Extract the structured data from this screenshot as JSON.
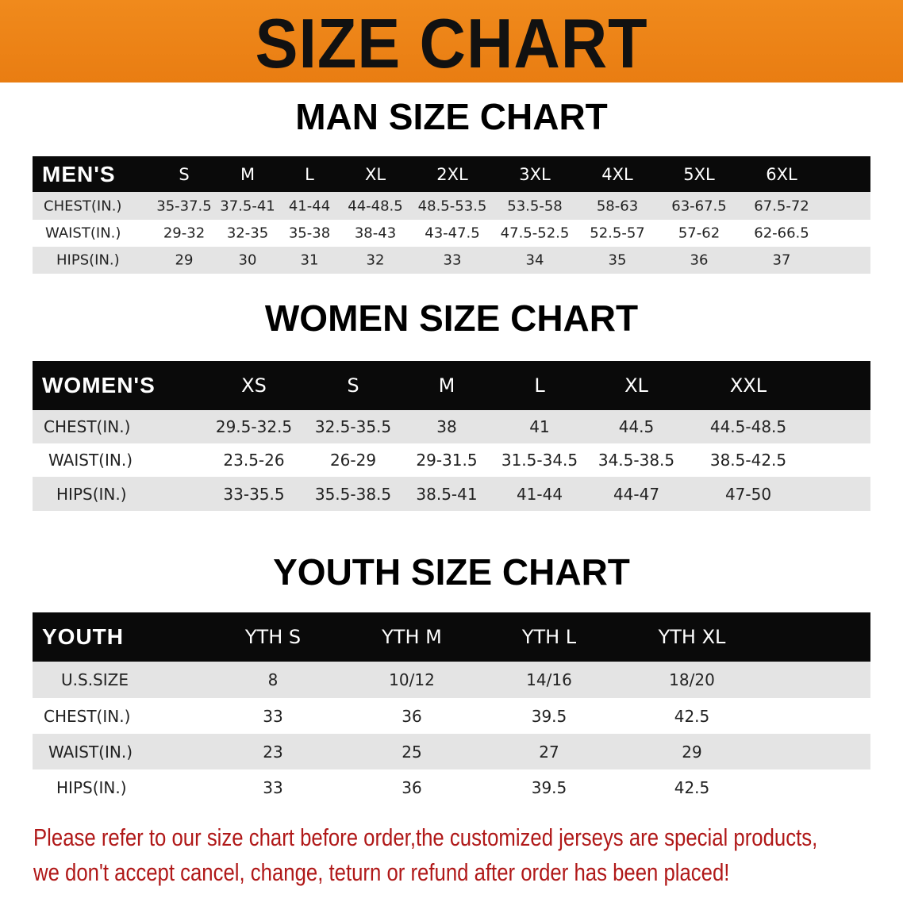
{
  "banner": {
    "title": "SIZE CHART",
    "color": "#ec8318"
  },
  "men": {
    "title": "MAN SIZE CHART",
    "header": [
      "MEN'S",
      "S",
      "M",
      "L",
      "XL",
      "2XL",
      "3XL",
      "4XL",
      "5XL",
      "6XL"
    ],
    "rows": [
      [
        "CHEST(IN.)",
        "35-37.5",
        "37.5-41",
        "41-44",
        "44-48.5",
        "48.5-53.5",
        "53.5-58",
        "58-63",
        "63-67.5",
        "67.5-72"
      ],
      [
        "WAIST(IN.)",
        "29-32",
        "32-35",
        "35-38",
        "38-43",
        "43-47.5",
        "47.5-52.5",
        "52.5-57",
        "57-62",
        "62-66.5"
      ],
      [
        "HIPS(IN.)",
        "29",
        "30",
        "31",
        "32",
        "33",
        "34",
        "35",
        "36",
        "37"
      ]
    ]
  },
  "women": {
    "title": "WOMEN SIZE CHART",
    "header": [
      "WOMEN'S",
      "XS",
      "S",
      "M",
      "L",
      "XL",
      "XXL"
    ],
    "rows": [
      [
        "CHEST(IN.)",
        "29.5-32.5",
        "32.5-35.5",
        "38",
        "41",
        "44.5",
        "44.5-48.5"
      ],
      [
        "WAIST(IN.)",
        "23.5-26",
        "26-29",
        "29-31.5",
        "31.5-34.5",
        "34.5-38.5",
        "38.5-42.5"
      ],
      [
        "HIPS(IN.)",
        "33-35.5",
        "35.5-38.5",
        "38.5-41",
        "41-44",
        "44-47",
        "47-50"
      ]
    ]
  },
  "youth": {
    "title": "YOUTH SIZE CHART",
    "header": [
      "YOUTH",
      "YTH S",
      "YTH M",
      "YTH L",
      "YTH XL"
    ],
    "rows": [
      [
        "U.S.SIZE",
        "8",
        "10/12",
        "14/16",
        "18/20"
      ],
      [
        "CHEST(IN.)",
        "33",
        "36",
        "39.5",
        "42.5"
      ],
      [
        "WAIST(IN.)",
        "23",
        "25",
        "27",
        "29"
      ],
      [
        "HIPS(IN.)",
        "33",
        "36",
        "39.5",
        "42.5"
      ]
    ]
  },
  "notice": {
    "line1": "Please refer to our size chart before order,the customized jerseys are special products,",
    "line2": "we don't accept cancel, change, teturn or refund after order has been placed!",
    "color": "#b01818"
  }
}
